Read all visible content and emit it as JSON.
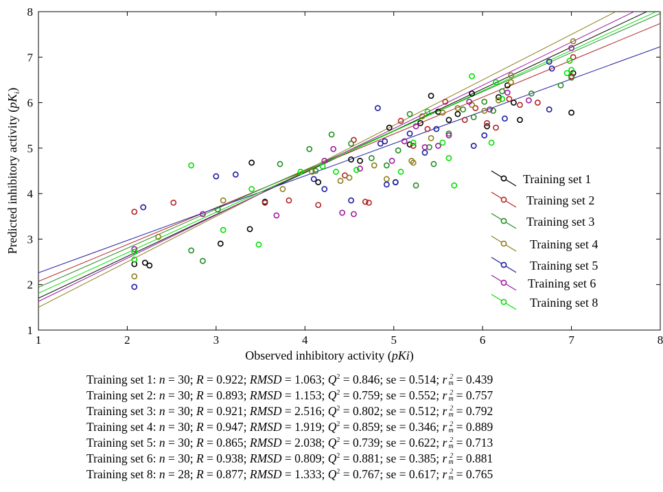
{
  "chart_data": {
    "type": "scatter",
    "xlabel": "Observed inhibitory activity (",
    "xlabel_italic": "pKi",
    "xlabel_tail": ")",
    "ylabel": "Predicted inhibitory activity (",
    "ylabel_italic": "pK",
    "ylabel_sub": "i",
    "ylabel_tail": ")",
    "xlim": [
      1,
      8
    ],
    "ylim": [
      1,
      8
    ],
    "xticks": [
      "1",
      "2",
      "3",
      "4",
      "5",
      "6",
      "7",
      "8"
    ],
    "yticks": [
      "1",
      "2",
      "3",
      "4",
      "5",
      "6",
      "7",
      "8"
    ],
    "grid": false,
    "legend_position": "right-inside",
    "series": [
      {
        "name": "Training set 1",
        "color": "#000000",
        "fit": [
          0.78,
          0.92
        ],
        "points": [
          [
            2.08,
            2.45
          ],
          [
            2.2,
            2.48
          ],
          [
            2.25,
            2.42
          ],
          [
            3.05,
            2.9
          ],
          [
            3.38,
            3.22
          ],
          [
            3.4,
            4.68
          ],
          [
            3.55,
            3.82
          ],
          [
            4.15,
            4.25
          ],
          [
            4.52,
            4.75
          ],
          [
            4.62,
            4.72
          ],
          [
            4.95,
            5.45
          ],
          [
            5.02,
            4.25
          ],
          [
            5.18,
            5.08
          ],
          [
            5.3,
            5.55
          ],
          [
            5.42,
            6.15
          ],
          [
            5.5,
            5.8
          ],
          [
            5.62,
            5.62
          ],
          [
            5.72,
            5.75
          ],
          [
            5.88,
            6.2
          ],
          [
            6.05,
            5.48
          ],
          [
            6.18,
            6.12
          ],
          [
            6.28,
            6.38
          ],
          [
            6.35,
            6.0
          ],
          [
            6.42,
            5.62
          ],
          [
            7.0,
            5.78
          ],
          [
            7.02,
            6.65
          ]
        ]
      },
      {
        "name": "Training set 2",
        "color": "#b22222",
        "fit": [
          1.26,
          0.81
        ],
        "points": [
          [
            2.08,
            3.6
          ],
          [
            2.52,
            3.8
          ],
          [
            3.55,
            3.8
          ],
          [
            3.82,
            3.85
          ],
          [
            4.15,
            3.75
          ],
          [
            4.45,
            4.4
          ],
          [
            4.55,
            5.18
          ],
          [
            4.68,
            3.82
          ],
          [
            4.72,
            3.8
          ],
          [
            5.08,
            5.6
          ],
          [
            5.22,
            5.05
          ],
          [
            5.38,
            5.42
          ],
          [
            5.58,
            6.02
          ],
          [
            5.8,
            5.62
          ],
          [
            5.92,
            5.88
          ],
          [
            6.05,
            5.55
          ],
          [
            6.15,
            5.45
          ],
          [
            6.3,
            6.08
          ],
          [
            6.42,
            5.95
          ],
          [
            6.62,
            6.0
          ],
          [
            7.0,
            6.58
          ],
          [
            7.02,
            7.0
          ]
        ]
      },
      {
        "name": "Training set 3",
        "color": "#228b22",
        "fit": [
          1.08,
          0.86
        ],
        "points": [
          [
            2.72,
            2.75
          ],
          [
            2.85,
            2.52
          ],
          [
            3.02,
            3.65
          ],
          [
            3.72,
            4.65
          ],
          [
            4.05,
            4.98
          ],
          [
            4.12,
            4.5
          ],
          [
            4.3,
            5.3
          ],
          [
            4.52,
            5.1
          ],
          [
            4.75,
            4.78
          ],
          [
            4.92,
            4.62
          ],
          [
            5.05,
            4.95
          ],
          [
            5.18,
            5.75
          ],
          [
            5.25,
            4.18
          ],
          [
            5.4,
            5.02
          ],
          [
            5.45,
            4.65
          ],
          [
            5.62,
            5.32
          ],
          [
            5.78,
            5.85
          ],
          [
            5.9,
            5.68
          ],
          [
            6.02,
            6.02
          ],
          [
            6.12,
            5.82
          ],
          [
            6.22,
            6.25
          ],
          [
            6.55,
            6.2
          ],
          [
            6.88,
            6.38
          ],
          [
            7.0,
            6.55
          ]
        ]
      },
      {
        "name": "Training set 4",
        "color": "#8b7d1a",
        "fit": [
          0.5,
          1.0
        ],
        "points": [
          [
            2.08,
            2.18
          ],
          [
            2.35,
            3.05
          ],
          [
            3.08,
            3.85
          ],
          [
            3.75,
            4.1
          ],
          [
            4.08,
            4.48
          ],
          [
            4.4,
            4.28
          ],
          [
            4.5,
            4.35
          ],
          [
            4.78,
            4.62
          ],
          [
            4.92,
            4.32
          ],
          [
            5.2,
            4.72
          ],
          [
            5.22,
            4.68
          ],
          [
            5.32,
            5.7
          ],
          [
            5.42,
            5.22
          ],
          [
            5.55,
            5.78
          ],
          [
            5.72,
            5.88
          ],
          [
            5.88,
            5.95
          ],
          [
            6.02,
            5.82
          ],
          [
            6.18,
            6.05
          ],
          [
            6.32,
            6.45
          ],
          [
            6.32,
            6.6
          ],
          [
            7.02,
            7.35
          ]
        ]
      },
      {
        "name": "Training set 5",
        "color": "#1a1a9e",
        "fit": [
          1.55,
          0.71
        ],
        "points": [
          [
            2.08,
            1.95
          ],
          [
            2.18,
            3.7
          ],
          [
            3.0,
            4.38
          ],
          [
            3.22,
            4.42
          ],
          [
            4.1,
            4.32
          ],
          [
            4.22,
            4.1
          ],
          [
            4.52,
            3.85
          ],
          [
            4.82,
            5.88
          ],
          [
            4.85,
            5.1
          ],
          [
            4.9,
            5.15
          ],
          [
            4.92,
            4.2
          ],
          [
            5.02,
            4.25
          ],
          [
            5.18,
            5.32
          ],
          [
            5.35,
            4.9
          ],
          [
            5.48,
            5.42
          ],
          [
            5.9,
            5.05
          ],
          [
            6.02,
            5.28
          ],
          [
            6.25,
            5.65
          ],
          [
            6.75,
            5.85
          ],
          [
            6.75,
            6.9
          ],
          [
            6.78,
            6.75
          ]
        ]
      },
      {
        "name": "Training set 6",
        "color": "#9b1a9b",
        "fit": [
          0.68,
          0.95
        ],
        "points": [
          [
            2.08,
            2.78
          ],
          [
            2.85,
            3.55
          ],
          [
            3.68,
            3.52
          ],
          [
            4.22,
            4.72
          ],
          [
            4.32,
            4.98
          ],
          [
            4.42,
            3.58
          ],
          [
            4.55,
            3.55
          ],
          [
            4.62,
            4.55
          ],
          [
            4.98,
            4.72
          ],
          [
            5.12,
            5.15
          ],
          [
            5.25,
            5.48
          ],
          [
            5.35,
            5.02
          ],
          [
            5.5,
            5.05
          ],
          [
            5.62,
            5.28
          ],
          [
            5.85,
            6.02
          ],
          [
            6.08,
            5.85
          ],
          [
            6.28,
            6.22
          ],
          [
            6.52,
            6.05
          ],
          [
            7.0,
            7.2
          ]
        ]
      },
      {
        "name": "Training set 8",
        "color": "#00e000",
        "fit": [
          0.92,
          0.89
        ],
        "points": [
          [
            2.08,
            2.72
          ],
          [
            2.08,
            2.55
          ],
          [
            2.72,
            4.62
          ],
          [
            3.08,
            3.2
          ],
          [
            3.4,
            4.1
          ],
          [
            3.48,
            2.88
          ],
          [
            3.95,
            4.48
          ],
          [
            4.2,
            4.6
          ],
          [
            4.35,
            4.48
          ],
          [
            4.58,
            4.52
          ],
          [
            5.08,
            4.48
          ],
          [
            5.22,
            5.12
          ],
          [
            5.38,
            5.8
          ],
          [
            5.55,
            5.12
          ],
          [
            5.68,
            4.18
          ],
          [
            5.62,
            4.78
          ],
          [
            5.88,
            6.58
          ],
          [
            6.1,
            5.12
          ],
          [
            6.15,
            6.45
          ],
          [
            6.22,
            6.08
          ],
          [
            6.95,
            6.65
          ],
          [
            6.98,
            6.92
          ],
          [
            7.0,
            6.72
          ]
        ]
      }
    ]
  },
  "stats": [
    {
      "set": "Training set 1: ",
      "n": "30",
      "R": "0.922",
      "RMSD": "1.063",
      "Q2": "0.846",
      "se": "0.514",
      "rm2": "0.439"
    },
    {
      "set": "Training set 2: ",
      "n": "30",
      "R": "0.893",
      "RMSD": "1.153",
      "Q2": "0.759",
      "se": "0.552",
      "rm2": "0.757"
    },
    {
      "set": "Training set 3: ",
      "n": "30",
      "R": "0.921",
      "RMSD": "2.516",
      "Q2": "0.802",
      "se": "0.512",
      "rm2": "0.792"
    },
    {
      "set": "Training set 4: ",
      "n": "30",
      "R": "0.947",
      "RMSD": "1.919",
      "Q2": "0.859",
      "se": "0.346",
      "rm2": "0.889"
    },
    {
      "set": "Training set 5: ",
      "n": "30",
      "R": "0.865",
      "RMSD": "2.038",
      "Q2": "0.739",
      "se": "0.622",
      "rm2": "0.713"
    },
    {
      "set": "Training set 6: ",
      "n": "30",
      "R": "0.938",
      "RMSD": "0.809",
      "Q2": "0.881",
      "se": "0.385",
      "rm2": "0.881"
    },
    {
      "set": "Training set 8: ",
      "n": "28",
      "R": "0.877",
      "RMSD": "1.333",
      "Q2": "0.767",
      "se": "0.617",
      "rm2": "0.765"
    }
  ],
  "stat_labels": {
    "n": "n",
    "R": "R",
    "RMSD": "RMSD",
    "Q": "Q",
    "Q_sup": "2",
    "se": "se",
    "r": "r",
    "r_sub": "m",
    "r_sup": "2",
    "eq": " = ",
    "sep": "; "
  }
}
